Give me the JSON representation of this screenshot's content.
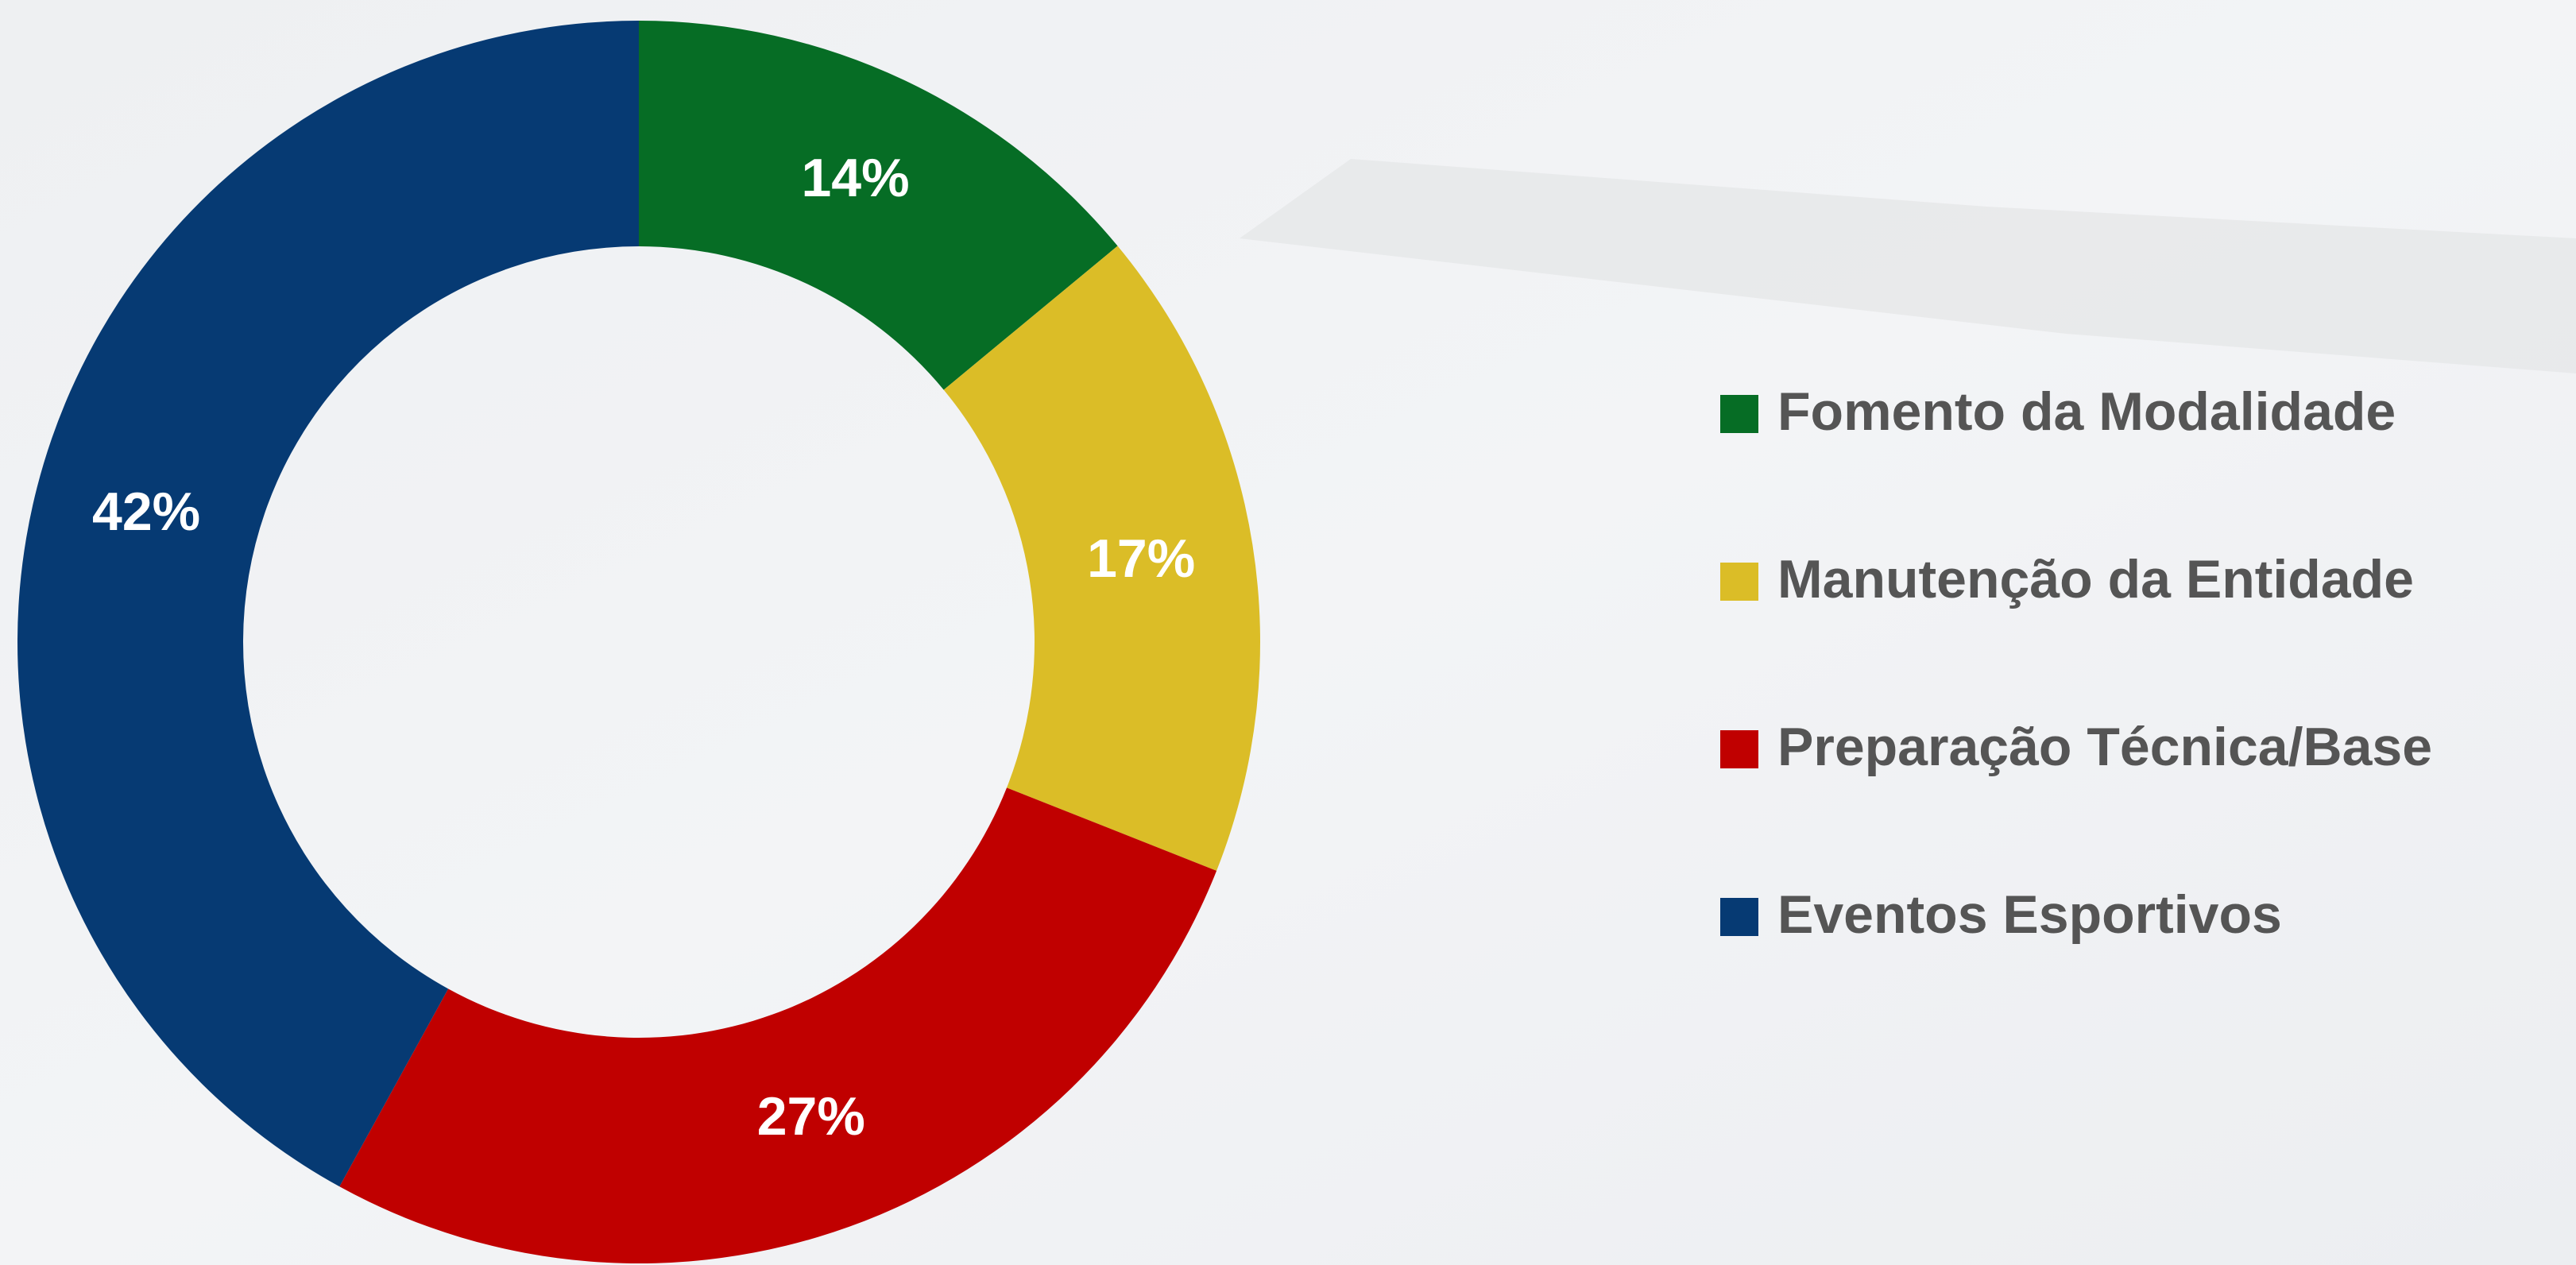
{
  "chart_data": {
    "type": "pie",
    "donut": true,
    "categories": [
      "Fomento da Modalidade",
      "Manutenção da Entidade",
      "Preparação Técnica/Base",
      "Eventos Esportivos"
    ],
    "values": [
      14,
      17,
      27,
      42
    ],
    "value_labels": [
      "14%",
      "17%",
      "27%",
      "42%"
    ],
    "colors": [
      "#066d25",
      "#dbbd27",
      "#c00000",
      "#063a73"
    ]
  }
}
